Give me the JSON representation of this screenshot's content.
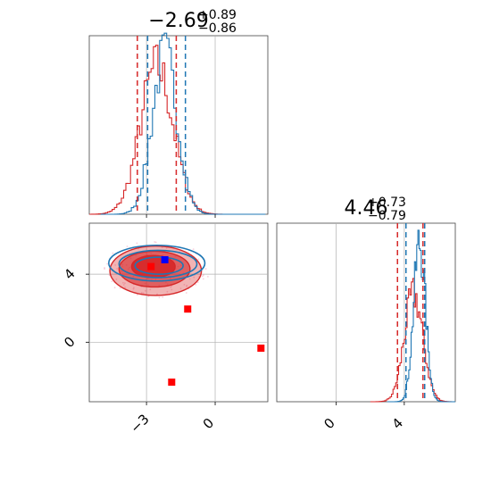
{
  "chart_data": {
    "type": "corner",
    "parameters": [
      {
        "title": {
          "median": "−2.69",
          "plus": "+0.89",
          "minus": "−0.86"
        },
        "range": [
          -5.5,
          2.3
        ],
        "ticks": [
          {
            "value": -3,
            "label": "−3"
          },
          {
            "value": 0,
            "label": "0"
          }
        ],
        "hist_blue": {
          "quantiles": [
            -2.95,
            -1.3
          ],
          "center": -2.2,
          "sigma": 0.55
        },
        "hist_red": {
          "quantiles": [
            -3.4,
            -1.7
          ],
          "center": -2.55,
          "sigma": 0.72
        }
      },
      {
        "title": {
          "median": "4.46",
          "plus": "+0.73",
          "minus": "−0.79"
        },
        "range": [
          -3.5,
          7.0
        ],
        "ticks": [
          {
            "value": 0,
            "label": "0"
          },
          {
            "value": 4,
            "label": "4"
          }
        ],
        "hist_blue": {
          "quantiles": [
            4.1,
            5.2
          ],
          "center": 4.9,
          "sigma": 0.35
        },
        "hist_red": {
          "quantiles": [
            3.6,
            5.1
          ],
          "center": 4.55,
          "sigma": 0.55
        }
      }
    ],
    "scatter_2d": {
      "red_contours": [
        {
          "cx": -2.7,
          "cy": 4.45,
          "rx": 0.95,
          "ry": 0.65,
          "opacity": 0.9
        },
        {
          "cx": -2.65,
          "cy": 4.3,
          "rx": 1.55,
          "ry": 1.05,
          "opacity": 0.6
        },
        {
          "cx": -2.6,
          "cy": 4.2,
          "rx": 2.0,
          "ry": 1.45,
          "opacity": 0.35
        }
      ],
      "blue_contours": [
        {
          "cx": -2.45,
          "cy": 4.5,
          "rx": 1.05,
          "ry": 0.5
        },
        {
          "cx": -2.5,
          "cy": 4.6,
          "rx": 1.7,
          "ry": 0.8
        },
        {
          "cx": -2.55,
          "cy": 4.65,
          "rx": 2.1,
          "ry": 1.05
        }
      ],
      "blue_points": [
        {
          "x": -2.2,
          "y": 4.85
        }
      ],
      "red_points": [
        {
          "x": -2.8,
          "y": 4.45
        },
        {
          "x": -1.2,
          "y": 1.95
        },
        {
          "x": 2.0,
          "y": -0.35
        },
        {
          "x": -1.9,
          "y": -2.35
        }
      ]
    },
    "colors": {
      "blue": "#1f77b4",
      "red": "#d62728",
      "grid": "#b0b0b0"
    }
  }
}
